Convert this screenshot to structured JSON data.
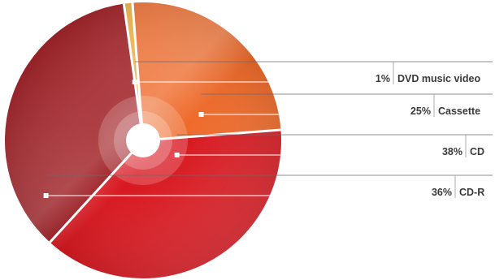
{
  "chart_data": {
    "type": "pie",
    "title": "",
    "slices": [
      {
        "name": "DVD music video",
        "value": 1,
        "label": "1%",
        "color": "#f0b040"
      },
      {
        "name": "Cassette",
        "value": 25,
        "label": "25%",
        "color": "#ee6a2a"
      },
      {
        "name": "CD",
        "value": 38,
        "label": "38%",
        "color": "#d81820"
      },
      {
        "name": "CD-R",
        "value": 36,
        "label": "36%",
        "color": "#9a1218"
      }
    ],
    "legend": "right"
  }
}
